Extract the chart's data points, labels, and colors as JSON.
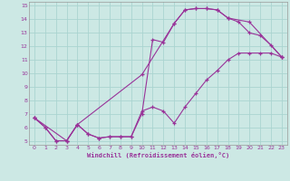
{
  "title": "",
  "xlabel": "Windchill (Refroidissement éolien,°C)",
  "ylabel": "",
  "bg_color": "#cce8e4",
  "grid_color": "#aad4d0",
  "line_color": "#993399",
  "xlim": [
    -0.5,
    23.5
  ],
  "ylim": [
    4.7,
    15.3
  ],
  "xticks": [
    0,
    1,
    2,
    3,
    4,
    5,
    6,
    7,
    8,
    9,
    10,
    11,
    12,
    13,
    14,
    15,
    16,
    17,
    18,
    19,
    20,
    21,
    22,
    23
  ],
  "yticks": [
    5,
    6,
    7,
    8,
    9,
    10,
    11,
    12,
    13,
    14,
    15
  ],
  "line1_x": [
    0,
    1,
    2,
    3,
    4,
    5,
    6,
    7,
    8,
    9,
    10,
    11,
    12,
    13,
    14,
    15,
    16,
    17,
    18,
    19,
    20,
    21,
    22,
    23
  ],
  "line1_y": [
    6.7,
    6.0,
    5.0,
    5.0,
    6.2,
    5.5,
    5.2,
    5.3,
    5.3,
    5.3,
    7.2,
    7.5,
    7.2,
    6.3,
    7.5,
    8.5,
    9.5,
    10.2,
    11.0,
    11.5,
    11.5,
    11.5,
    11.5,
    11.2
  ],
  "line2_x": [
    0,
    1,
    2,
    3,
    4,
    5,
    6,
    7,
    8,
    9,
    10,
    11,
    12,
    13,
    14,
    15,
    16,
    17,
    18,
    19,
    20,
    21,
    22,
    23
  ],
  "line2_y": [
    6.7,
    6.0,
    5.0,
    5.0,
    6.2,
    5.5,
    5.2,
    5.3,
    5.3,
    5.3,
    7.0,
    12.5,
    12.3,
    13.7,
    14.7,
    14.8,
    14.8,
    14.7,
    14.1,
    13.8,
    13.0,
    12.8,
    12.1,
    11.2
  ],
  "line3_x": [
    0,
    3,
    4,
    10,
    13,
    14,
    15,
    16,
    17,
    18,
    20,
    23
  ],
  "line3_y": [
    6.7,
    5.0,
    6.2,
    9.9,
    13.7,
    14.7,
    14.8,
    14.8,
    14.7,
    14.1,
    13.8,
    11.2
  ]
}
